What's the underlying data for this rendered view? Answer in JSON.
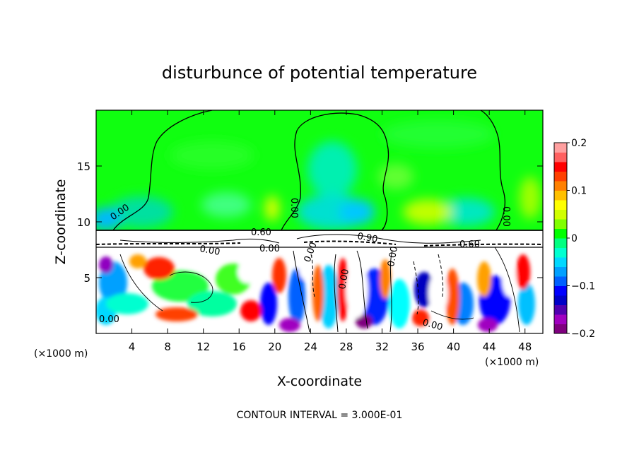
{
  "chart_data": {
    "type": "heatmap",
    "title": "disturbunce of potential temperature",
    "xlabel": "X-coordinate",
    "ylabel": "Z-coordinate",
    "x_unit_label_left": "(×1000 m)",
    "x_unit_label_right": "(×1000 m)",
    "xlim": [
      0,
      50
    ],
    "ylim": [
      0,
      20
    ],
    "x_ticks": [
      4,
      8,
      12,
      16,
      20,
      24,
      28,
      32,
      36,
      40,
      44,
      48
    ],
    "y_ticks": [
      5,
      10,
      15
    ],
    "colorbar": {
      "range": [
        -0.2,
        0.2
      ],
      "tick_labels": [
        "0.2",
        "0.1",
        "0",
        "−0.1",
        "−0.2"
      ],
      "tick_values": [
        0.2,
        0.1,
        0,
        -0.1,
        -0.2
      ],
      "colors": [
        "#7f007f",
        "#a000c0",
        "#5000b0",
        "#0000c8",
        "#0000ff",
        "#0060ff",
        "#00a0ff",
        "#00d8ff",
        "#00ffd0",
        "#00ff80",
        "#00ff00",
        "#80ff00",
        "#d0ff00",
        "#ffff00",
        "#ffc000",
        "#ff8000",
        "#ff4000",
        "#ff0000",
        "#ff6060",
        "#ffa0a0"
      ]
    },
    "contour_labels": [
      "0.00",
      "0.00",
      "0.00",
      "0.60",
      "0.90",
      "0.60",
      "0.00",
      "0.00",
      "0.00",
      "0.00",
      "0.00",
      "0.00",
      "0.00"
    ],
    "contour_interval_text": "CONTOUR INTERVAL = 3.000E-01"
  }
}
